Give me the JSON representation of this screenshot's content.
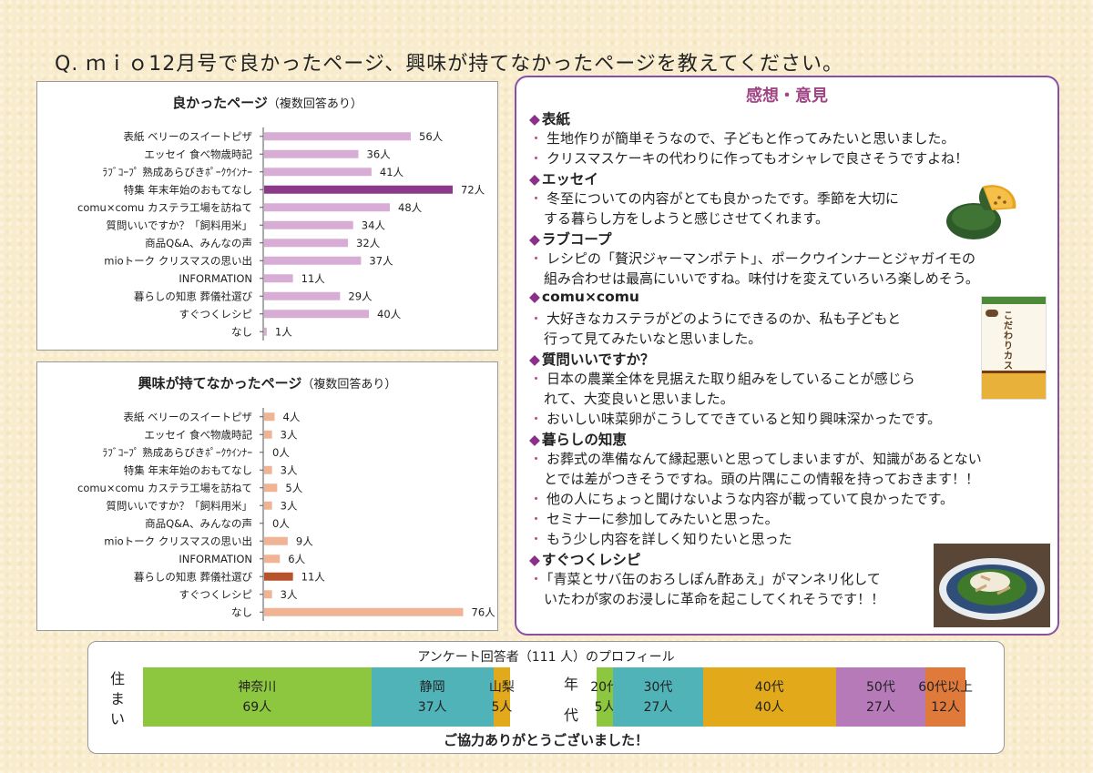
{
  "question": "Q. ｍｉｏ12月号で良かったページ、興味が持てなかったページを教えてください。",
  "good_panel": {
    "title": "良かったページ",
    "note": "（複数回答あり）"
  },
  "bad_panel": {
    "title": "興味が持てなかったページ",
    "note": "（複数回答あり）"
  },
  "chart_data": [
    {
      "type": "bar",
      "orientation": "horizontal",
      "title": "良かったページ（複数回答あり）",
      "categories": [
        "表紙 ベリーのスイートピザ",
        "エッセイ 食べ物歳時記",
        "ﾗﾌﾞｺｰﾌﾟ 熟成あらびきﾎﾟｰｸｳｲﾝﾅｰ",
        "特集 年末年始のおもてなし",
        "comu×comu カステラ工場を訪ねて",
        "質問いいですか？「飼料用米」",
        "商品Q&A、みんなの声",
        "mioトーク クリスマスの思い出",
        "INFORMATION",
        "暮らしの知恵 葬儀社選び",
        "すぐつくレシピ",
        "なし"
      ],
      "values": [
        56,
        36,
        41,
        72,
        48,
        34,
        32,
        37,
        11,
        29,
        40,
        1
      ],
      "value_labels": [
        "56人",
        "36人",
        "41人",
        "72人",
        "48人",
        "34人",
        "32人",
        "37人",
        "11人",
        "29人",
        "40人",
        "1人"
      ],
      "bar_color": "#d7add6",
      "highlight_index": 3,
      "highlight_color": "#8b3a8a",
      "xlim": [
        0,
        80
      ]
    },
    {
      "type": "bar",
      "orientation": "horizontal",
      "title": "興味が持てなかったページ（複数回答あり）",
      "categories": [
        "表紙 ベリーのスイートピザ",
        "エッセイ 食べ物歳時記",
        "ﾗﾌﾞｺｰﾌﾟ 熟成あらびきﾎﾟｰｸｳｲﾝﾅｰ",
        "特集 年末年始のおもてなし",
        "comu×comu カステラ工場を訪ねて",
        "質問いいですか？「飼料用米」",
        "商品Q&A、みんなの声",
        "mioトーク クリスマスの思い出",
        "INFORMATION",
        "暮らしの知恵 葬儀社選び",
        "すぐつくレシピ",
        "なし"
      ],
      "values": [
        4,
        3,
        0,
        3,
        5,
        3,
        0,
        9,
        6,
        11,
        3,
        76
      ],
      "value_labels": [
        "4人",
        "3人",
        "0人",
        "3人",
        "5人",
        "3人",
        "0人",
        "9人",
        "6人",
        "11人",
        "3人",
        "76人"
      ],
      "bar_color": "#f0b495",
      "highlight_index": 9,
      "highlight_color": "#b8522a",
      "xlim": [
        0,
        80
      ]
    }
  ],
  "opinions": {
    "title": "感想・意見",
    "sections": [
      {
        "label": "表紙",
        "items": [
          [
            "生地作りが簡単そうなので、子どもと作ってみたいと思いました。"
          ],
          [
            "クリスマスケーキの代わりに作ってもオシャレで良さそうですよね！"
          ]
        ]
      },
      {
        "label": "エッセイ",
        "items": [
          [
            "冬至についての内容がとても良かったです。季節を大切に",
            "する暮らし方をしようと感じさせてくれます。"
          ]
        ]
      },
      {
        "label": "ラブコープ",
        "items": [
          [
            "レシピの「贅沢ジャーマンポテト」、ポークウインナーとジャガイモの",
            "組み合わせは最高にいいですね。味付けを変えていろいろ楽しめそう。"
          ]
        ]
      },
      {
        "label": "comu×comu",
        "items": [
          [
            "大好きなカステラがどのようにできるのか、私も子どもと",
            "行って見てみたいなと思いました。"
          ]
        ]
      },
      {
        "label": "質問いいですか？",
        "items": [
          [
            "日本の農業全体を見据えた取り組みをしていることが感じら",
            "れて、大変良いと思いました。"
          ],
          [
            "おいしい味菜卵がこうしてできていると知り興味深かったです。"
          ]
        ]
      },
      {
        "label": "暮らしの知恵",
        "items": [
          [
            "お葬式の準備なんて縁起悪いと思ってしまいますが、知識があるとない",
            "とでは差がつきそうですね。頭の片隅にこの情報を持っておきます！！"
          ],
          [
            "他の人にちょっと聞けないような内容が載っていて良かったです。"
          ],
          [
            "セミナーに参加してみたいと思った。"
          ],
          [
            "もう少し内容を詳しく知りたいと思った"
          ]
        ]
      },
      {
        "label": "すぐつくレシピ",
        "items": [
          [
            "「青菜とサバ缶のおろしぽん酢あえ」がマンネリ化して",
            "いたわが家のお浸しに革命を起こしてくれそうです！！"
          ]
        ]
      }
    ],
    "castella_label": "こだわりカステラ"
  },
  "profile": {
    "title": "アンケート回答者（111 人）のプロフィール",
    "residence_label": [
      "住",
      "ま",
      "い"
    ],
    "age_label": [
      "年",
      "代"
    ],
    "residence": [
      {
        "name": "神奈川",
        "count": "69人",
        "value": 69,
        "color": "#8dc63f"
      },
      {
        "name": "静岡",
        "count": "37人",
        "value": 37,
        "color": "#4fb3b8"
      },
      {
        "name": "山梨",
        "count": "5人",
        "value": 5,
        "color": "#e2aa1a"
      }
    ],
    "age": [
      {
        "name": "20代",
        "count": "5人",
        "value": 5,
        "color": "#8dc63f"
      },
      {
        "name": "30代",
        "count": "27人",
        "value": 27,
        "color": "#4fb3b8"
      },
      {
        "name": "40代",
        "count": "40人",
        "value": 40,
        "color": "#e2aa1a"
      },
      {
        "name": "50代",
        "count": "27人",
        "value": 27,
        "color": "#b67ab8"
      },
      {
        "name": "60代以上",
        "count": "12人",
        "value": 12,
        "color": "#e07a3a"
      }
    ],
    "thanks": "ご協力ありがとうございました！"
  }
}
